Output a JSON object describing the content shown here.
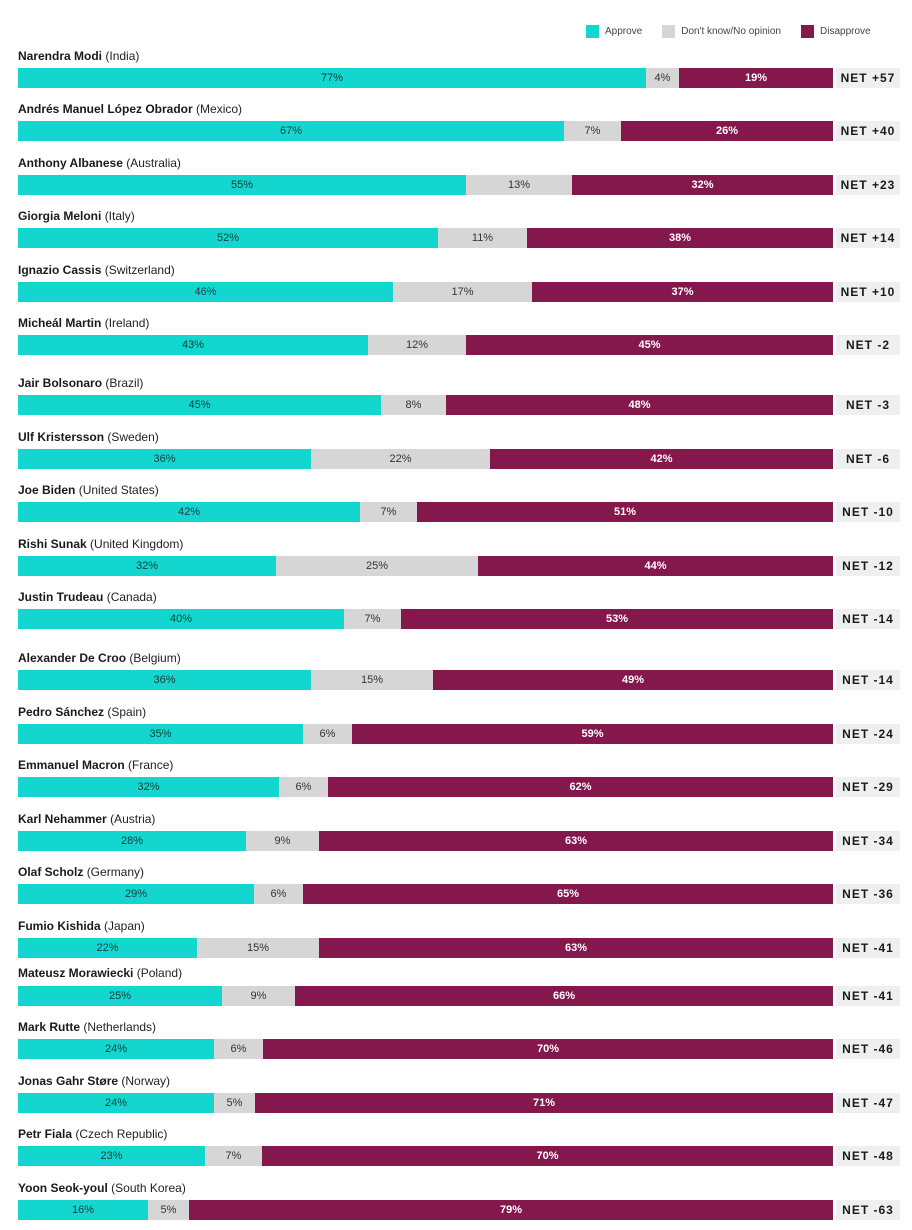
{
  "legend": {
    "approve": "Approve",
    "neutral": "Don't know/No opinion",
    "disapprove": "Disapprove"
  },
  "colors": {
    "approve": "#13d6cf",
    "neutral": "#d6d6d6",
    "disapprove": "#84174c"
  },
  "chart_data": {
    "type": "bar",
    "orientation": "horizontal",
    "stacked": true,
    "title": "",
    "xlabel": "",
    "ylabel": "",
    "xlim": [
      0,
      100
    ],
    "legend_position": "top-right",
    "series_names": [
      "Approve",
      "Don't know/No opinion",
      "Disapprove"
    ],
    "rows": [
      {
        "name": "Narendra Modi",
        "country": "(India)",
        "approve": 77,
        "neutral": 4,
        "disapprove": 19,
        "net": "NET +57"
      },
      {
        "name": "Andrés Manuel López Obrador",
        "country": "(Mexico)",
        "approve": 67,
        "neutral": 7,
        "disapprove": 26,
        "net": "NET +40"
      },
      {
        "name": "Anthony Albanese",
        "country": "(Australia)",
        "approve": 55,
        "neutral": 13,
        "disapprove": 32,
        "net": "NET +23"
      },
      {
        "name": "Giorgia Meloni",
        "country": "(Italy)",
        "approve": 52,
        "neutral": 11,
        "disapprove": 38,
        "net": "NET +14"
      },
      {
        "name": "Ignazio Cassis",
        "country": "(Switzerland)",
        "approve": 46,
        "neutral": 17,
        "disapprove": 37,
        "net": "NET +10"
      },
      {
        "name": "Micheál Martin",
        "country": "(Ireland)",
        "approve": 43,
        "neutral": 12,
        "disapprove": 45,
        "net": "NET -2"
      },
      {
        "name": "Jair Bolsonaro",
        "country": "(Brazil)",
        "approve": 45,
        "neutral": 8,
        "disapprove": 48,
        "net": "NET -3"
      },
      {
        "name": "Ulf Kristersson",
        "country": "(Sweden)",
        "approve": 36,
        "neutral": 22,
        "disapprove": 42,
        "net": "NET -6"
      },
      {
        "name": "Joe Biden",
        "country": "(United States)",
        "approve": 42,
        "neutral": 7,
        "disapprove": 51,
        "net": "NET -10"
      },
      {
        "name": "Rishi Sunak",
        "country": "(United Kingdom)",
        "approve": 32,
        "neutral": 25,
        "disapprove": 44,
        "net": "NET -12"
      },
      {
        "name": "Justin Trudeau",
        "country": "(Canada)",
        "approve": 40,
        "neutral": 7,
        "disapprove": 53,
        "net": "NET -14"
      },
      {
        "name": "Alexander De Croo",
        "country": "(Belgium)",
        "approve": 36,
        "neutral": 15,
        "disapprove": 49,
        "net": "NET -14"
      },
      {
        "name": "Pedro Sánchez",
        "country": "(Spain)",
        "approve": 35,
        "neutral": 6,
        "disapprove": 59,
        "net": "NET -24"
      },
      {
        "name": "Emmanuel Macron",
        "country": "(France)",
        "approve": 32,
        "neutral": 6,
        "disapprove": 62,
        "net": "NET -29"
      },
      {
        "name": "Karl Nehammer",
        "country": "(Austria)",
        "approve": 28,
        "neutral": 9,
        "disapprove": 63,
        "net": "NET -34"
      },
      {
        "name": "Olaf Scholz",
        "country": "(Germany)",
        "approve": 29,
        "neutral": 6,
        "disapprove": 65,
        "net": "NET -36"
      },
      {
        "name": "Fumio Kishida",
        "country": "(Japan)",
        "approve": 22,
        "neutral": 15,
        "disapprove": 63,
        "net": "NET -41"
      },
      {
        "name": "Mateusz Morawiecki",
        "country": "(Poland)",
        "approve": 25,
        "neutral": 9,
        "disapprove": 66,
        "net": "NET -41"
      },
      {
        "name": "Mark Rutte",
        "country": "(Netherlands)",
        "approve": 24,
        "neutral": 6,
        "disapprove": 70,
        "net": "NET -46"
      },
      {
        "name": "Jonas Gahr Støre",
        "country": "(Norway)",
        "approve": 24,
        "neutral": 5,
        "disapprove": 71,
        "net": "NET -47"
      },
      {
        "name": "Petr Fiala",
        "country": "(Czech Republic)",
        "approve": 23,
        "neutral": 7,
        "disapprove": 70,
        "net": "NET -48"
      },
      {
        "name": "Yoon Seok-youl",
        "country": "(South Korea)",
        "approve": 16,
        "neutral": 5,
        "disapprove": 79,
        "net": "NET -63"
      }
    ]
  }
}
